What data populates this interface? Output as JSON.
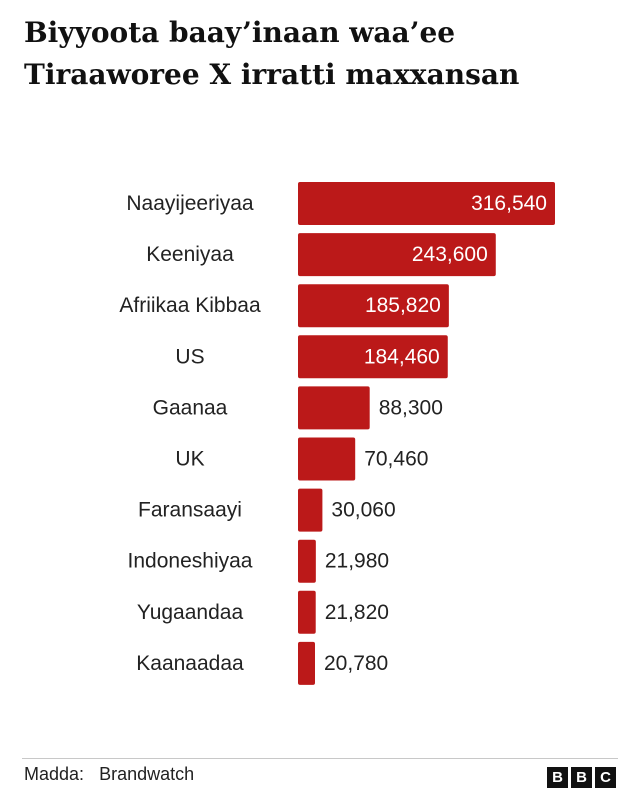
{
  "header": {
    "title_line1": "Biyyoota baay’inaan waa’ee",
    "title_line2": "Tiraaworee X irratti maxxansan"
  },
  "chart_data": {
    "type": "bar",
    "orientation": "horizontal",
    "title": "Biyyoota baay’inaan waa’ee Tiraaworee X irratti maxxansan",
    "categories": [
      "Naayijeeriyaa",
      "Keeniyaa",
      "Afriikaa Kibbaa",
      "US",
      "Gaanaa",
      "UK",
      "Faransaayi",
      "Indoneshiyaa",
      "Yugaandaa",
      "Kaanaadaa"
    ],
    "values": [
      316540,
      243600,
      185820,
      184460,
      88300,
      70460,
      30060,
      21980,
      21820,
      20780
    ],
    "value_labels": [
      "316,540",
      "243,600",
      "185,820",
      "184,460",
      "88,300",
      "70,460",
      "30,060",
      "21,980",
      "21,820",
      "20,780"
    ],
    "xlim": [
      0,
      316540
    ],
    "grid": false,
    "legend": "none",
    "bar_color": "#bb1919"
  },
  "footer": {
    "source_label": "Madda:",
    "source_value": "Brandwatch",
    "logo_letters": [
      "B",
      "B",
      "C"
    ]
  }
}
